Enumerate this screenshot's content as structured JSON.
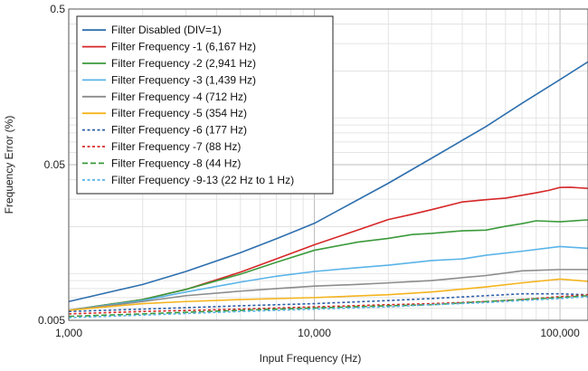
{
  "chart_data": {
    "type": "line",
    "title": "",
    "xlabel": "Input Frequency (Hz)",
    "ylabel": "Frequency Error (%)",
    "x_scale": "log",
    "y_scale": "log",
    "xlim": [
      1000,
      130000
    ],
    "ylim": [
      0.005,
      0.5
    ],
    "x_ticks": [
      {
        "value": 1000,
        "label": "1,000"
      },
      {
        "value": 10000,
        "label": "10,000"
      },
      {
        "value": 100000,
        "label": "100,000"
      }
    ],
    "y_ticks": [
      {
        "value": 0.005,
        "label": "0.005"
      },
      {
        "value": 0.05,
        "label": "0.05"
      },
      {
        "value": 0.5,
        "label": "0.5"
      }
    ],
    "grid": true,
    "legend_position": "top-left",
    "series": [
      {
        "name": "Filter Disabled (DIV=1)",
        "color": "#2e6fae",
        "dash": "solid",
        "points": [
          [
            1000,
            0.0066
          ],
          [
            2000,
            0.0085
          ],
          [
            3000,
            0.0103
          ],
          [
            5000,
            0.0136
          ],
          [
            7000,
            0.0167
          ],
          [
            10000,
            0.021
          ],
          [
            20000,
            0.038
          ],
          [
            30000,
            0.055
          ],
          [
            50000,
            0.088
          ],
          [
            70000,
            0.124
          ],
          [
            100000,
            0.176
          ],
          [
            130000,
            0.229
          ]
        ]
      },
      {
        "name": "Filter Frequency -1 (6,167 Hz)",
        "color": "#d62728",
        "dash": "solid",
        "points": [
          [
            1000,
            0.0058
          ],
          [
            2000,
            0.0068
          ],
          [
            3000,
            0.0079
          ],
          [
            5000,
            0.0102
          ],
          [
            7000,
            0.0124
          ],
          [
            10000,
            0.0153
          ],
          [
            15000,
            0.019
          ],
          [
            20000,
            0.0222
          ],
          [
            25000,
            0.024
          ],
          [
            30000,
            0.0257
          ],
          [
            40000,
            0.0288
          ],
          [
            50000,
            0.0298
          ],
          [
            60000,
            0.0305
          ],
          [
            70000,
            0.0318
          ],
          [
            80000,
            0.033
          ],
          [
            90000,
            0.0342
          ],
          [
            100000,
            0.0357
          ],
          [
            110000,
            0.0358
          ],
          [
            130000,
            0.0352
          ]
        ]
      },
      {
        "name": "Filter Frequency -2 (2,941 Hz)",
        "color": "#3b9a3b",
        "dash": "solid",
        "points": [
          [
            1000,
            0.0058
          ],
          [
            2000,
            0.0068
          ],
          [
            3000,
            0.0079
          ],
          [
            5000,
            0.0099
          ],
          [
            7000,
            0.0118
          ],
          [
            10000,
            0.0141
          ],
          [
            15000,
            0.0159
          ],
          [
            20000,
            0.0168
          ],
          [
            25000,
            0.0178
          ],
          [
            30000,
            0.0181
          ],
          [
            40000,
            0.0188
          ],
          [
            50000,
            0.019
          ],
          [
            60000,
            0.0201
          ],
          [
            70000,
            0.0209
          ],
          [
            80000,
            0.0218
          ],
          [
            100000,
            0.0215
          ],
          [
            130000,
            0.0221
          ]
        ]
      },
      {
        "name": "Filter Frequency -3 (1,439 Hz)",
        "color": "#5ab4e8",
        "dash": "solid",
        "points": [
          [
            1000,
            0.0058
          ],
          [
            2000,
            0.0067
          ],
          [
            3000,
            0.0076
          ],
          [
            5000,
            0.0088
          ],
          [
            7000,
            0.0096
          ],
          [
            10000,
            0.0103
          ],
          [
            15000,
            0.0109
          ],
          [
            20000,
            0.0113
          ],
          [
            30000,
            0.0121
          ],
          [
            40000,
            0.0124
          ],
          [
            50000,
            0.0131
          ],
          [
            70000,
            0.0139
          ],
          [
            100000,
            0.0149
          ],
          [
            130000,
            0.0145
          ]
        ]
      },
      {
        "name": "Filter Frequency -4 (712 Hz)",
        "color": "#8c8c8c",
        "dash": "solid",
        "points": [
          [
            1000,
            0.0058
          ],
          [
            2000,
            0.0066
          ],
          [
            3000,
            0.0072
          ],
          [
            5000,
            0.0077
          ],
          [
            7000,
            0.008
          ],
          [
            10000,
            0.0083
          ],
          [
            15000,
            0.0085
          ],
          [
            20000,
            0.0087
          ],
          [
            30000,
            0.009
          ],
          [
            40000,
            0.0094
          ],
          [
            50000,
            0.0097
          ],
          [
            70000,
            0.0104
          ],
          [
            100000,
            0.0106
          ],
          [
            130000,
            0.0106
          ]
        ]
      },
      {
        "name": "Filter Frequency -5 (354 Hz)",
        "color": "#f5b41e",
        "dash": "solid",
        "points": [
          [
            1000,
            0.0058
          ],
          [
            2000,
            0.0064
          ],
          [
            3000,
            0.0066
          ],
          [
            5000,
            0.0068
          ],
          [
            10000,
            0.007
          ],
          [
            20000,
            0.0073
          ],
          [
            30000,
            0.0076
          ],
          [
            50000,
            0.0082
          ],
          [
            70000,
            0.0087
          ],
          [
            100000,
            0.0092
          ],
          [
            130000,
            0.0089
          ]
        ]
      },
      {
        "name": "Filter Frequency -6 (177 Hz)",
        "color": "#2c5fa8",
        "dash": "dot",
        "points": [
          [
            1000,
            0.0057
          ],
          [
            2000,
            0.0059
          ],
          [
            5000,
            0.0062
          ],
          [
            10000,
            0.0064
          ],
          [
            20000,
            0.0067
          ],
          [
            30000,
            0.0069
          ],
          [
            50000,
            0.0072
          ],
          [
            70000,
            0.0074
          ],
          [
            100000,
            0.0074
          ],
          [
            130000,
            0.0073
          ]
        ]
      },
      {
        "name": "Filter Frequency -7 (88 Hz)",
        "color": "#d62728",
        "dash": "dot",
        "points": [
          [
            1000,
            0.0055
          ],
          [
            2000,
            0.0057
          ],
          [
            5000,
            0.0059
          ],
          [
            10000,
            0.0061
          ],
          [
            20000,
            0.0063
          ],
          [
            30000,
            0.0064
          ],
          [
            50000,
            0.0066
          ],
          [
            70000,
            0.0068
          ],
          [
            100000,
            0.0071
          ],
          [
            130000,
            0.0073
          ]
        ]
      },
      {
        "name": "Filter Frequency -8 (44 Hz)",
        "color": "#3b9a3b",
        "dash": "dash",
        "points": [
          [
            1000,
            0.0053
          ],
          [
            2000,
            0.0055
          ],
          [
            5000,
            0.0058
          ],
          [
            10000,
            0.006
          ],
          [
            20000,
            0.0062
          ],
          [
            30000,
            0.0063
          ],
          [
            50000,
            0.0066
          ],
          [
            70000,
            0.0068
          ],
          [
            100000,
            0.007
          ],
          [
            130000,
            0.0072
          ]
        ]
      },
      {
        "name": "Filter Frequency -9-13 (22 Hz to 1 Hz)",
        "color": "#5ab4e8",
        "dash": "dot",
        "points": [
          [
            1000,
            0.0052
          ],
          [
            2000,
            0.0054
          ],
          [
            5000,
            0.0057
          ],
          [
            10000,
            0.0059
          ],
          [
            20000,
            0.0061
          ],
          [
            30000,
            0.0063
          ],
          [
            50000,
            0.0065
          ],
          [
            70000,
            0.0067
          ],
          [
            100000,
            0.0069
          ],
          [
            130000,
            0.0071
          ]
        ]
      }
    ]
  }
}
